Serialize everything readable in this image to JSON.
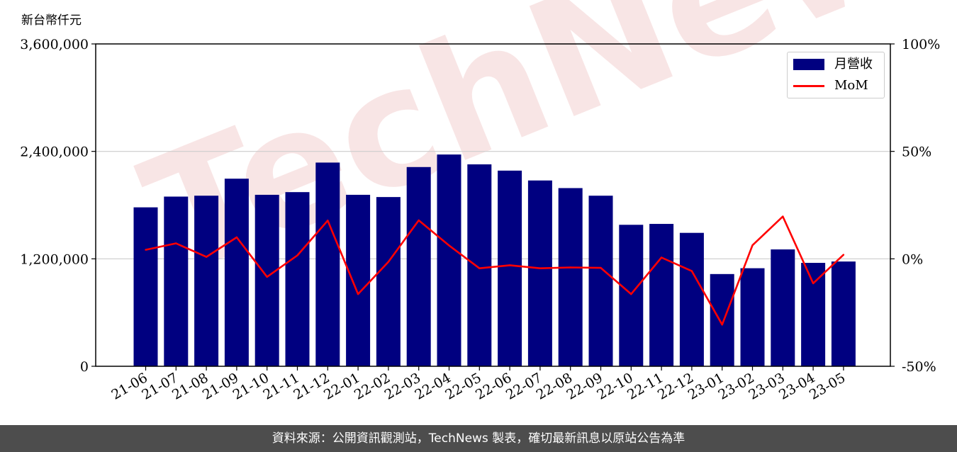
{
  "unit_label": "新台幣仟元",
  "footer_text": "資料來源：公開資訊觀測站，TechNews 製表，確切最新訊息以原站公告為準",
  "watermark_text": "TechNews",
  "colors": {
    "bar": "#000080",
    "line": "#ff0000",
    "footer_bg": "#4d4d4d",
    "watermark": "#f5d5d5"
  },
  "chart_data": {
    "type": "bar",
    "categories": [
      "21-06",
      "21-07",
      "21-08",
      "21-09",
      "21-10",
      "21-11",
      "21-12",
      "22-01",
      "22-02",
      "22-03",
      "22-04",
      "22-05",
      "22-06",
      "22-07",
      "22-08",
      "22-09",
      "22-10",
      "22-11",
      "22-12",
      "23-01",
      "23-02",
      "23-03",
      "23-04",
      "23-05"
    ],
    "series": [
      {
        "name": "月營收",
        "axis": "left",
        "type": "bar",
        "values": [
          1775000,
          1895000,
          1905000,
          2095000,
          1915000,
          1945000,
          2275000,
          1915000,
          1890000,
          2225000,
          2365000,
          2255000,
          2185000,
          2075000,
          1990000,
          1905000,
          1580000,
          1590000,
          1490000,
          1030000,
          1095000,
          1305000,
          1155000,
          1170000
        ]
      },
      {
        "name": "MoM",
        "axis": "right",
        "type": "line",
        "values": [
          4.2,
          7.2,
          0.9,
          10.0,
          -8.4,
          1.6,
          17.8,
          -16.4,
          -1.4,
          17.9,
          6.2,
          -4.4,
          -3.0,
          -4.4,
          -4.0,
          -4.2,
          -16.4,
          0.6,
          -5.7,
          -30.6,
          6.3,
          19.7,
          -11.4,
          1.9
        ]
      }
    ],
    "y_left": {
      "ylim": [
        0,
        3600000
      ],
      "ticks": [
        "0",
        "1,200,000",
        "2,400,000",
        "3,600,000"
      ],
      "tick_values": [
        0,
        1200000,
        2400000,
        3600000
      ]
    },
    "y_right": {
      "ylim": [
        -50,
        100
      ],
      "ticks": [
        "-50%",
        "0%",
        "50%",
        "100%"
      ],
      "tick_values": [
        -50,
        0,
        50,
        100
      ]
    },
    "grid": "horizontal",
    "legend": "top-right"
  }
}
